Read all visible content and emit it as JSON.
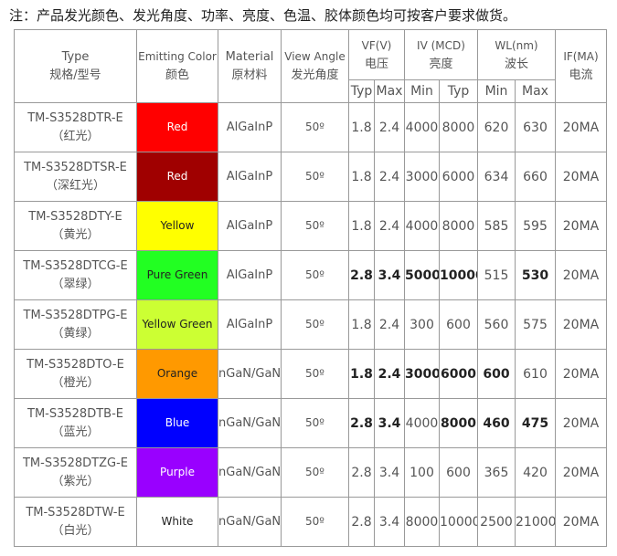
{
  "note": "注：产品发光颜色、发光角度、功率、亮度、色温、胶体颜色均可按客户要求做货。",
  "table": {
    "header": {
      "type": "Type",
      "type_cn": "规格/型号",
      "color": "Emitting Color",
      "color_cn": "颜色",
      "material": "Material",
      "material_cn": "原材料",
      "angle": "View Angle",
      "angle_cn": "发光角度",
      "vf": "VF(V)",
      "vf_cn": "电压",
      "iv": "IV (MCD)",
      "iv_cn": "亮度",
      "wl": "WL(nm)",
      "wl_cn": "波长",
      "if": "IF(MA)",
      "if_cn": "电流",
      "sub": [
        "Typ",
        "Max",
        "Min",
        "Typ",
        "Min",
        "Max"
      ]
    },
    "rows": [
      [
        "TM-S3528DTR-E",
        "（红光）",
        "Red",
        "AlGaInP",
        "50º",
        "1.8",
        "2.4",
        "4000",
        "8000",
        "620",
        "630",
        "20MA"
      ],
      [
        "TM-S3528DTSR-E",
        "（深红光）",
        "Red",
        "AlGaInP",
        "50º",
        "1.8",
        "2.4",
        "3000",
        "6000",
        "634",
        "660",
        "20MA"
      ],
      [
        "TM-S3528DTY-E",
        "（黄光）",
        "Yellow",
        "AlGaInP",
        "50º",
        "1.8",
        "2.4",
        "4000",
        "8000",
        "585",
        "595",
        "20MA"
      ],
      [
        "TM-S3528DTCG-E",
        "（翠绿）",
        "Pure Green",
        "AlGaInP",
        "50º",
        "2.8",
        "3.4",
        "5000",
        "10000",
        "515",
        "530",
        "20MA"
      ],
      [
        "TM-S3528DTPG-E",
        "（黄绿）",
        "Yellow Green",
        "AlGaInP",
        "50º",
        "1.8",
        "2.4",
        "300",
        "600",
        "560",
        "575",
        "20MA"
      ],
      [
        "TM-S3528DTO-E",
        "（橙光）",
        "Orange",
        "nGaN/GaN",
        "50º",
        "1.8",
        "2.4",
        "3000",
        "6000",
        "600",
        "610",
        "20MA"
      ],
      [
        "TM-S3528DTB-E",
        "（蓝光）",
        "Blue",
        "nGaN/GaN",
        "50º",
        "2.8",
        "3.4",
        "4000",
        "8000",
        "460",
        "475",
        "20MA"
      ],
      [
        "TM-S3528DTZG-E",
        "（紫光）",
        "Purple",
        "nGaN/GaN",
        "50º",
        "2.8",
        "3.4",
        "100",
        "600",
        "365",
        "420",
        "20MA"
      ],
      [
        "TM-S3528DTW-E",
        "（白光）",
        "White",
        "nGaN/GaN",
        "50º",
        "2.8",
        "3.4",
        "8000",
        "10000",
        "2500",
        "21000",
        "20MA"
      ]
    ]
  }
}
